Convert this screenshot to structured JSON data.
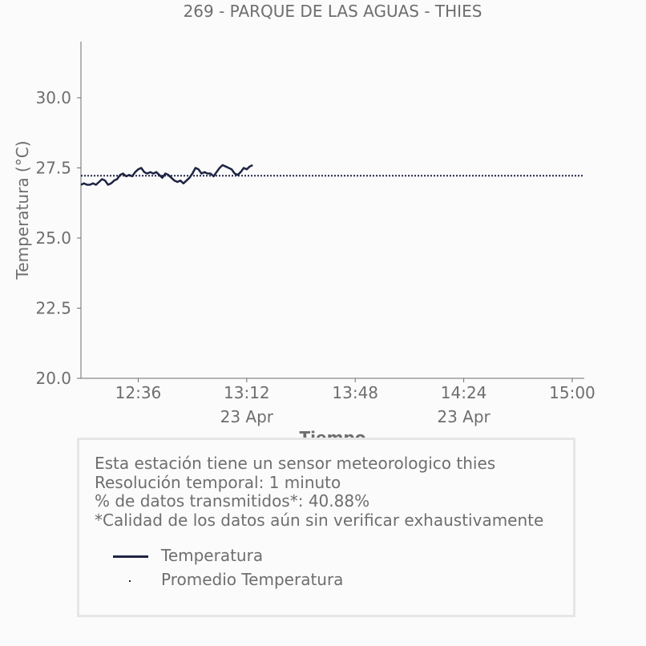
{
  "chart_data": {
    "type": "line",
    "title": "269 - PARQUE DE LAS AGUAS - THIES",
    "xlabel": "Tiempo",
    "ylabel": "Temperatura (°C)",
    "xlim": [
      "12:17",
      "15:04"
    ],
    "ylim": [
      20.0,
      32.0
    ],
    "yticks": [
      20.0,
      22.5,
      25.0,
      27.5,
      30.0
    ],
    "ytick_labels": [
      "20.0",
      "22.5",
      "25.0",
      "27.5",
      "30.0"
    ],
    "xticks": [
      "12:36",
      "13:12",
      "13:48",
      "14:24",
      "15:00"
    ],
    "xtick_labels": [
      "12:36",
      "13:12",
      "13:48",
      "14:24",
      "15:00"
    ],
    "xtick_sublabels": [
      "",
      "23 Apr",
      "",
      "23 Apr",
      ""
    ],
    "grid": false,
    "series": [
      {
        "name": "Temperatura",
        "style": "solid",
        "color": "#1f2444",
        "x": [
          "12:17",
          "12:18",
          "12:19",
          "12:20",
          "12:21",
          "12:22",
          "12:23",
          "12:24",
          "12:25",
          "12:26",
          "12:27",
          "12:28",
          "12:29",
          "12:30",
          "12:31",
          "12:32",
          "12:33",
          "12:34",
          "12:35",
          "12:36",
          "12:37",
          "12:38",
          "12:39",
          "12:40",
          "12:41",
          "12:42",
          "12:43",
          "12:44",
          "12:45",
          "12:46",
          "12:47",
          "12:48",
          "12:49",
          "12:50",
          "12:51",
          "12:52",
          "12:53",
          "12:54",
          "12:55",
          "12:56",
          "12:57",
          "12:58",
          "12:59",
          "13:00",
          "13:01",
          "13:02",
          "13:03",
          "13:04",
          "13:05",
          "13:06",
          "13:07",
          "13:08",
          "13:09",
          "13:10",
          "13:11",
          "13:12",
          "13:13",
          "13:14",
          "13:15",
          "13:16",
          "13:17"
        ],
        "y": [
          26.9,
          26.95,
          26.9,
          26.9,
          26.95,
          26.9,
          27.0,
          27.1,
          27.05,
          26.9,
          26.95,
          27.05,
          27.1,
          27.25,
          27.3,
          27.2,
          27.25,
          27.2,
          27.35,
          27.45,
          27.5,
          27.35,
          27.3,
          27.35,
          27.3,
          27.35,
          27.25,
          27.15,
          27.3,
          27.25,
          27.15,
          27.05,
          27.0,
          27.05,
          26.95,
          27.05,
          27.15,
          27.3,
          27.5,
          27.45,
          27.3,
          27.35,
          27.3,
          27.3,
          27.2,
          27.35,
          27.5,
          27.6,
          27.55,
          27.5,
          27.45,
          27.3,
          27.25,
          27.35,
          27.5,
          27.45,
          27.55,
          27.6,
          null,
          null,
          null
        ]
      },
      {
        "name": "Promedio Temperatura",
        "style": "dotted",
        "color": "#1f2444",
        "x": [
          "12:17",
          "15:04"
        ],
        "y": [
          27.22,
          27.22
        ]
      }
    ]
  },
  "info": {
    "line1": "Esta estación tiene un sensor meteorologico thies",
    "line2": "Resolución temporal: 1 minuto",
    "line3": "% de datos transmitidos*: 40.88%",
    "line4": "*Calidad de los datos aún sin verificar exhaustivamente"
  },
  "legend": {
    "item1": "Temperatura",
    "item2": "Promedio Temperatura"
  }
}
